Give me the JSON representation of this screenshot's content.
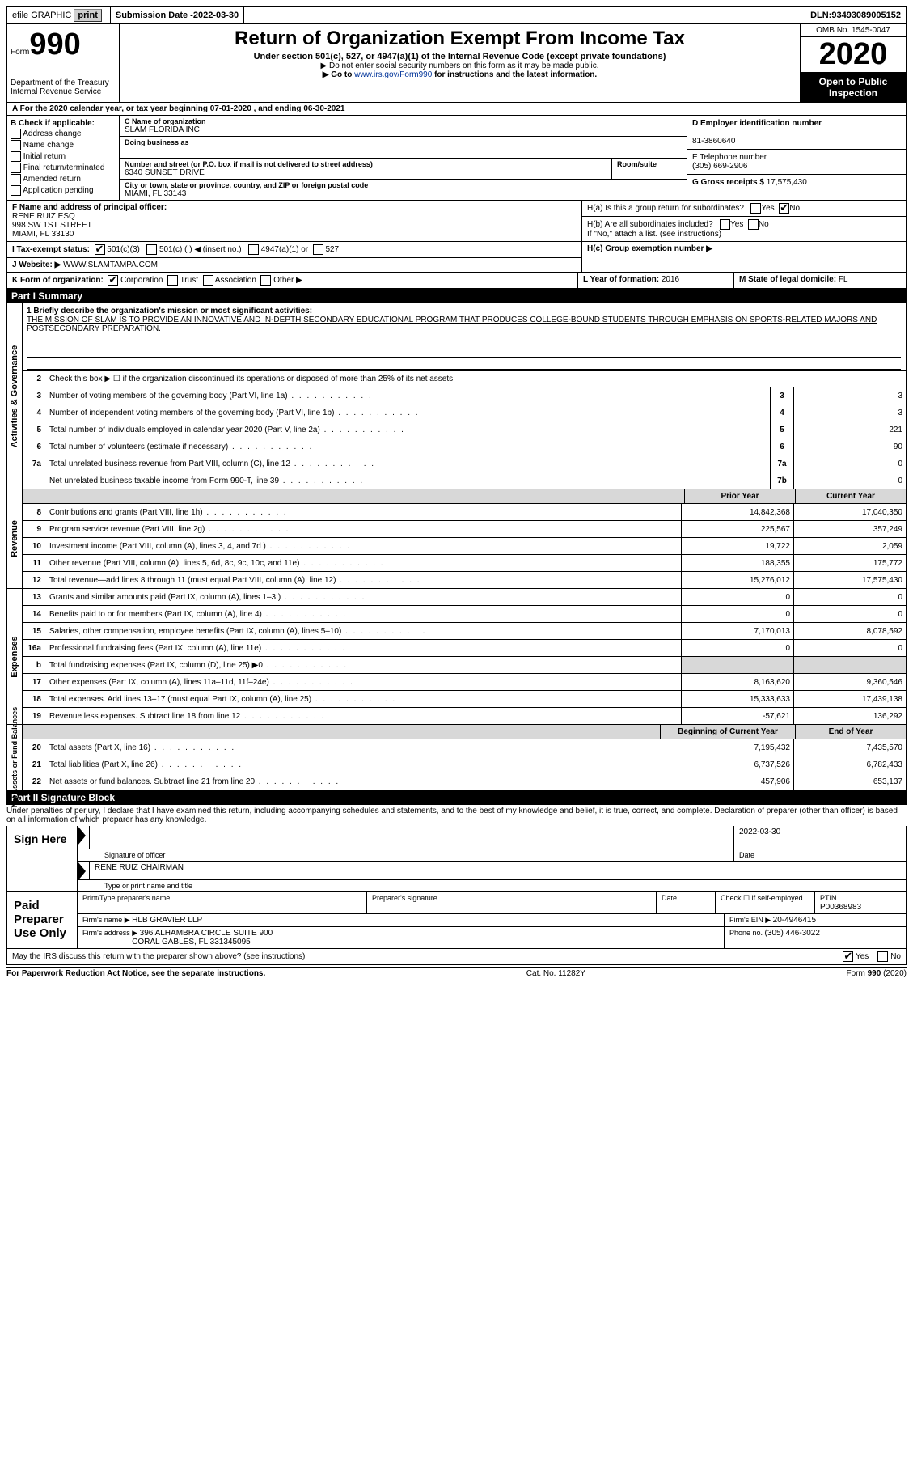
{
  "topbar": {
    "efile": "efile GRAPHIC",
    "print": "print",
    "sub_date_label": "Submission Date - ",
    "sub_date": "2022-03-30",
    "dln_label": "DLN: ",
    "dln": "93493089005152"
  },
  "header": {
    "form_word": "Form",
    "form_num": "990",
    "dept": "Department of the Treasury\nInternal Revenue Service",
    "title": "Return of Organization Exempt From Income Tax",
    "subtitle": "Under section 501(c), 527, or 4947(a)(1) of the Internal Revenue Code (except private foundations)",
    "warn1": "▶ Do not enter social security numbers on this form as it may be made public.",
    "warn2_a": "▶ Go to ",
    "warn2_link": "www.irs.gov/Form990",
    "warn2_b": " for instructions and the latest information.",
    "omb": "OMB No. 1545-0047",
    "year": "2020",
    "otp": "Open to Public Inspection"
  },
  "rowA": "A For the 2020 calendar year, or tax year beginning 07-01-2020    , and ending 06-30-2021",
  "boxB": {
    "label": "B Check if applicable:",
    "addr": "Address change",
    "name": "Name change",
    "init": "Initial return",
    "final": "Final return/terminated",
    "amend": "Amended return",
    "app": "Application pending"
  },
  "boxC": {
    "c_label": "C Name of organization",
    "c_name": "SLAM FLORIDA INC",
    "dba": "Doing business as",
    "addr_label": "Number and street (or P.O. box if mail is not delivered to street address)",
    "room_label": "Room/suite",
    "addr": "6340 SUNSET DRIVE",
    "city_label": "City or town, state or province, country, and ZIP or foreign postal code",
    "city": "MIAMI, FL  33143"
  },
  "boxD": {
    "d_label": "D Employer identification number",
    "d_val": "81-3860640",
    "e_label": "E Telephone number",
    "e_val": "(305) 669-2906",
    "g_label": "G Gross receipts $ ",
    "g_val": "17,575,430"
  },
  "boxF": {
    "label": "F  Name and address of principal officer:",
    "line1": "RENE RUIZ ESQ",
    "line2": "998 SW 1ST STREET",
    "line3": "MIAMI, FL  33130"
  },
  "boxH": {
    "a": "H(a)  Is this a group return for subordinates?",
    "a_yes": "Yes",
    "a_no": "No",
    "b": "H(b)  Are all subordinates included?",
    "b_note": "If \"No,\" attach a list. (see instructions)",
    "c": "H(c)  Group exemption number ▶"
  },
  "boxI": {
    "label": "I    Tax-exempt status:",
    "c3": "501(c)(3)",
    "c": "501(c) (  )  ◀ (insert no.)",
    "a1": "4947(a)(1) or",
    "s527": "527"
  },
  "boxJ": {
    "label": "J   Website: ▶  ",
    "val": "WWW.SLAMTAMPA.COM"
  },
  "boxK": {
    "label": "K Form of organization:",
    "corp": "Corporation",
    "trust": "Trust",
    "assoc": "Association",
    "other": "Other ▶"
  },
  "boxL": {
    "label": "L Year of formation: ",
    "val": "2016"
  },
  "boxM": {
    "label": "M State of legal domicile: ",
    "val": "FL"
  },
  "part1": {
    "title": "Part I      Summary",
    "l1_label": "1  Briefly describe the organization's mission or most significant activities:",
    "l1_text": "THE MISSION OF SLAM IS TO PROVIDE AN INNOVATIVE AND IN-DEPTH SECONDARY EDUCATIONAL PROGRAM THAT PRODUCES COLLEGE-BOUND STUDENTS THROUGH EMPHASIS ON SPORTS-RELATED MAJORS AND POSTSECONDARY PREPARATION.",
    "l2": "Check this box ▶ ☐  if the organization discontinued its operations or disposed of more than 25% of its net assets.",
    "lines_gov": [
      {
        "n": "3",
        "d": "Number of voting members of the governing body (Part VI, line 1a)",
        "c": "3",
        "v": "3"
      },
      {
        "n": "4",
        "d": "Number of independent voting members of the governing body (Part VI, line 1b)",
        "c": "4",
        "v": "3"
      },
      {
        "n": "5",
        "d": "Total number of individuals employed in calendar year 2020 (Part V, line 2a)",
        "c": "5",
        "v": "221"
      },
      {
        "n": "6",
        "d": "Total number of volunteers (estimate if necessary)",
        "c": "6",
        "v": "90"
      },
      {
        "n": "7a",
        "d": "Total unrelated business revenue from Part VIII, column (C), line 12",
        "c": "7a",
        "v": "0"
      },
      {
        "n": "",
        "d": "Net unrelated business taxable income from Form 990-T, line 39",
        "c": "7b",
        "v": "0"
      }
    ],
    "h_prior": "Prior Year",
    "h_curr": "Current Year",
    "rev": [
      {
        "n": "8",
        "d": "Contributions and grants (Part VIII, line 1h)",
        "p": "14,842,368",
        "c": "17,040,350"
      },
      {
        "n": "9",
        "d": "Program service revenue (Part VIII, line 2g)",
        "p": "225,567",
        "c": "357,249"
      },
      {
        "n": "10",
        "d": "Investment income (Part VIII, column (A), lines 3, 4, and 7d )",
        "p": "19,722",
        "c": "2,059"
      },
      {
        "n": "11",
        "d": "Other revenue (Part VIII, column (A), lines 5, 6d, 8c, 9c, 10c, and 11e)",
        "p": "188,355",
        "c": "175,772"
      },
      {
        "n": "12",
        "d": "Total revenue—add lines 8 through 11 (must equal Part VIII, column (A), line 12)",
        "p": "15,276,012",
        "c": "17,575,430"
      }
    ],
    "exp": [
      {
        "n": "13",
        "d": "Grants and similar amounts paid (Part IX, column (A), lines 1–3 )",
        "p": "0",
        "c": "0"
      },
      {
        "n": "14",
        "d": "Benefits paid to or for members (Part IX, column (A), line 4)",
        "p": "0",
        "c": "0"
      },
      {
        "n": "15",
        "d": "Salaries, other compensation, employee benefits (Part IX, column (A), lines 5–10)",
        "p": "7,170,013",
        "c": "8,078,592"
      },
      {
        "n": "16a",
        "d": "Professional fundraising fees (Part IX, column (A), line 11e)",
        "p": "0",
        "c": "0"
      },
      {
        "n": "b",
        "d": "Total fundraising expenses (Part IX, column (D), line 25) ▶0",
        "p": "",
        "c": "",
        "shade": true
      },
      {
        "n": "17",
        "d": "Other expenses (Part IX, column (A), lines 11a–11d, 11f–24e)",
        "p": "8,163,620",
        "c": "9,360,546"
      },
      {
        "n": "18",
        "d": "Total expenses. Add lines 13–17 (must equal Part IX, column (A), line 25)",
        "p": "15,333,633",
        "c": "17,439,138"
      },
      {
        "n": "19",
        "d": "Revenue less expenses. Subtract line 18 from line 12",
        "p": "-57,621",
        "c": "136,292"
      }
    ],
    "h_beg": "Beginning of Current Year",
    "h_end": "End of Year",
    "net": [
      {
        "n": "20",
        "d": "Total assets (Part X, line 16)",
        "p": "7,195,432",
        "c": "7,435,570"
      },
      {
        "n": "21",
        "d": "Total liabilities (Part X, line 26)",
        "p": "6,737,526",
        "c": "6,782,433"
      },
      {
        "n": "22",
        "d": "Net assets or fund balances. Subtract line 21 from line 20",
        "p": "457,906",
        "c": "653,137"
      }
    ],
    "side_gov": "Activities & Governance",
    "side_rev": "Revenue",
    "side_exp": "Expenses",
    "side_net": "Net Assets or Fund Balances"
  },
  "part2": {
    "title": "Part II     Signature Block",
    "penalties": "Under penalties of perjury, I declare that I have examined this return, including accompanying schedules and statements, and to the best of my knowledge and belief, it is true, correct, and complete. Declaration of preparer (other than officer) is based on all information of which preparer has any knowledge.",
    "sign_here": "Sign Here",
    "sig_officer": "Signature of officer",
    "date_lbl": "Date",
    "sig_date": "2022-03-30",
    "name_title": "RENE RUIZ  CHAIRMAN",
    "type_name": "Type or print name and title",
    "paid": "Paid Preparer Use Only",
    "prep_name_lbl": "Print/Type preparer's name",
    "prep_sig_lbl": "Preparer's signature",
    "check_lbl": "Check ☐ if self-employed",
    "ptin_lbl": "PTIN",
    "ptin": "P00368983",
    "firm_name_lbl": "Firm's name    ▶ ",
    "firm_name": "HLB GRAVIER LLP",
    "firm_ein_lbl": "Firm's EIN ▶ ",
    "firm_ein": "20-4946415",
    "firm_addr_lbl": "Firm's address ▶ ",
    "firm_addr1": "396 ALHAMBRA CIRCLE SUITE 900",
    "firm_addr2": "CORAL GABLES, FL  331345095",
    "phone_lbl": "Phone no. ",
    "phone": "(305) 446-3022",
    "may_irs": "May the IRS discuss this return with the preparer shown above? (see instructions)",
    "yes": "Yes",
    "no": "No"
  },
  "footer": {
    "left": "For Paperwork Reduction Act Notice, see the separate instructions.",
    "mid": "Cat. No. 11282Y",
    "right": "Form 990 (2020)"
  },
  "colors": {
    "link": "#003399",
    "shade": "#d8d8d8",
    "black": "#000000"
  }
}
